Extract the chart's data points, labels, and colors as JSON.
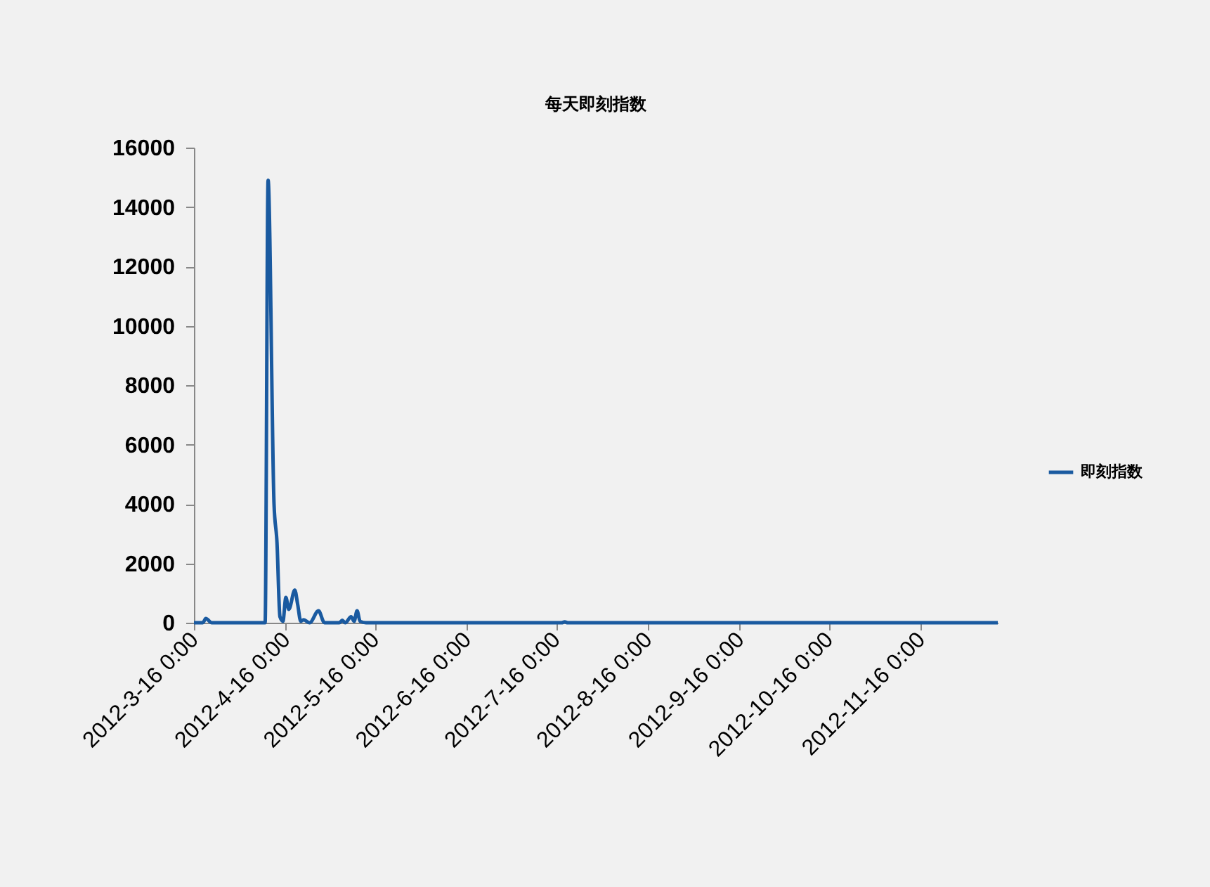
{
  "chart_data": {
    "type": "line",
    "title": "每天即刻指数",
    "x": [
      "2012-03-16",
      "2012-03-19",
      "2012-03-20",
      "2012-03-22",
      "2012-04-09",
      "2012-04-10",
      "2012-04-12",
      "2012-04-13",
      "2012-04-14",
      "2012-04-15",
      "2012-04-16",
      "2012-04-17",
      "2012-04-19",
      "2012-04-20",
      "2012-04-21",
      "2012-04-22",
      "2012-04-24",
      "2012-04-27",
      "2012-04-29",
      "2012-05-04",
      "2012-05-05",
      "2012-05-06",
      "2012-05-08",
      "2012-05-09",
      "2012-05-10",
      "2012-05-11",
      "2012-05-13",
      "2012-07-18",
      "2012-07-19",
      "2012-07-20",
      "2012-12-12"
    ],
    "series": [
      {
        "name": "即刻指数",
        "color": "#1a5aa0",
        "values": [
          0,
          0,
          140,
          0,
          0,
          14900,
          4000,
          2700,
          200,
          50,
          850,
          450,
          1100,
          600,
          50,
          100,
          0,
          400,
          0,
          0,
          80,
          0,
          200,
          50,
          400,
          50,
          0,
          0,
          30,
          0,
          0
        ]
      }
    ],
    "xlim": [
      "2012-03-16",
      "2012-12-12"
    ],
    "xticks": [
      {
        "value": "2012-03-16",
        "label": "2012-3-16 0:00"
      },
      {
        "value": "2012-04-16",
        "label": "2012-4-16 0:00"
      },
      {
        "value": "2012-05-16",
        "label": "2012-5-16 0:00"
      },
      {
        "value": "2012-06-16",
        "label": "2012-6-16 0:00"
      },
      {
        "value": "2012-07-16",
        "label": "2012-7-16 0:00"
      },
      {
        "value": "2012-08-16",
        "label": "2012-8-16 0:00"
      },
      {
        "value": "2012-09-16",
        "label": "2012-9-16 0:00"
      },
      {
        "value": "2012-10-16",
        "label": "2012-10-16 0:00"
      },
      {
        "value": "2012-11-16",
        "label": "2012-11-16 0:00"
      }
    ],
    "ylim": [
      0,
      16000
    ],
    "yticks": [
      0,
      2000,
      4000,
      6000,
      8000,
      10000,
      12000,
      14000,
      16000
    ],
    "legend": "right"
  }
}
